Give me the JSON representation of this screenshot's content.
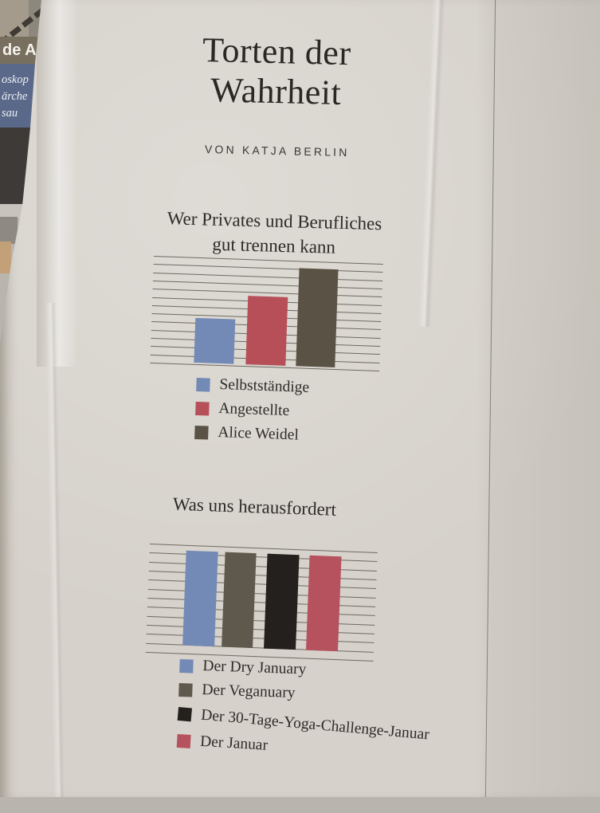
{
  "page": {
    "title_lines": [
      "Torten der",
      "Wahrheit"
    ],
    "title": "Torten der Wahrheit",
    "byline": "VON KATJA BERLIN"
  },
  "scraps": {
    "caption": "de A",
    "blue_box_lines": [
      "oskop",
      "ärche",
      "sau"
    ]
  },
  "colors": {
    "paper": "#d6d2cb",
    "ink": "#2e2a26",
    "gridline": "#6e6a62",
    "blue": "#7389b6",
    "red": "#b64f58",
    "brown_gray": "#5a5245",
    "gray": "#5f584d",
    "black": "#24201d",
    "red2": "#b5525e"
  },
  "chart_data": [
    {
      "type": "bar",
      "title": "Wer Privates und Berufliches gut trennen kann",
      "heading_lines": [
        "Wer Privates und Berufliches",
        "gut trennen kann"
      ],
      "categories": [
        "Selbstständige",
        "Angestellte",
        "Alice Weidel"
      ],
      "values": [
        43,
        66,
        95
      ],
      "colors": [
        "#7389b6",
        "#b64f58",
        "#5a5245"
      ],
      "xlabel": "",
      "ylabel": "",
      "ylim": [
        0,
        100
      ],
      "axis_tick_labels": "none (satirical chart, relative heights only)",
      "grid": "horizontal lines",
      "gridline_count": 14,
      "legend_position": "below"
    },
    {
      "type": "bar",
      "title": "Was uns herausfordert",
      "heading_lines": [
        "Was uns herausfordert"
      ],
      "categories": [
        "Der Dry January",
        "Der Veganuary",
        "Der 30-Tage-Yoga-Challenge-Januar",
        "Der Januar"
      ],
      "values": [
        100,
        100,
        100,
        100
      ],
      "colors": [
        "#7389b6",
        "#5f584d",
        "#24201d",
        "#b5525e"
      ],
      "xlabel": "",
      "ylabel": "",
      "ylim": [
        0,
        100
      ],
      "axis_tick_labels": "none (satirical chart, all bars equal)",
      "grid": "horizontal lines",
      "gridline_count": 13,
      "legend_position": "below"
    }
  ]
}
